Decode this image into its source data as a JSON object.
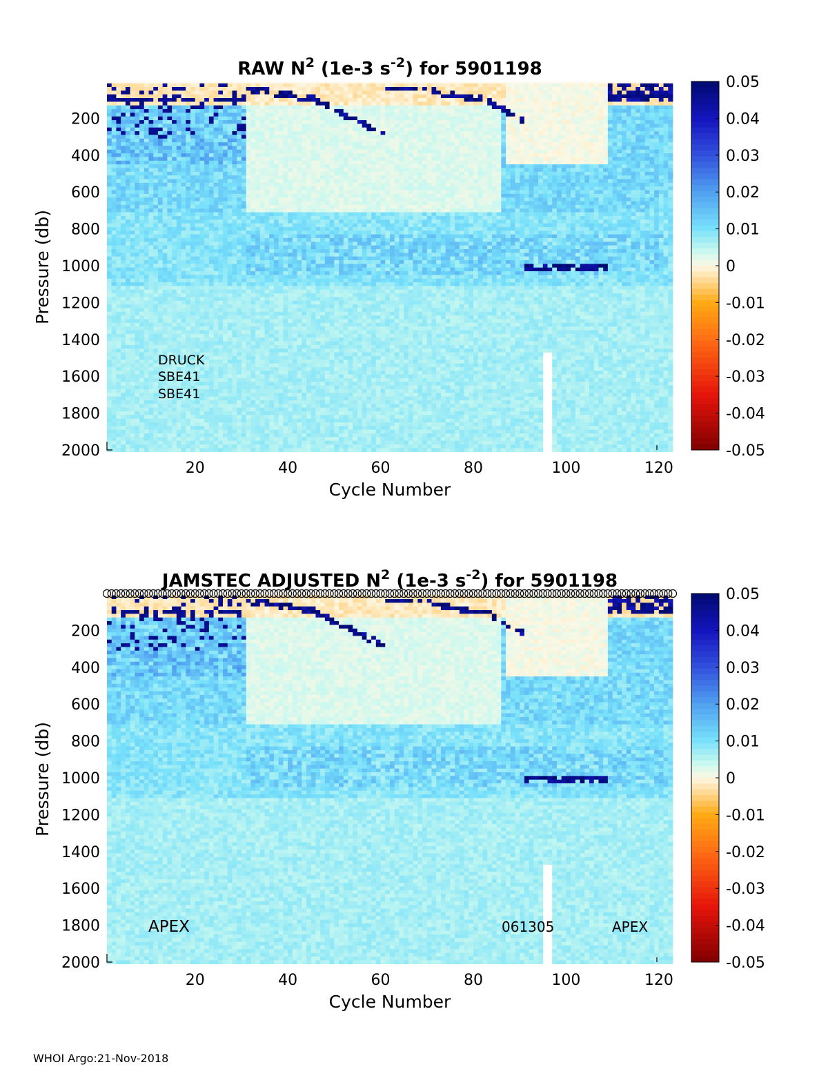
{
  "chart_data": [
    {
      "type": "heatmap",
      "title": {
        "prefix": "RAW N",
        "sup1": "2",
        "mid": " (1e-3 s",
        "sup2": "-2",
        "suffix": ") for 5901198"
      },
      "xlabel": "Cycle Number",
      "ylabel": "Pressure (db)",
      "xlim": [
        1,
        123
      ],
      "ylim": [
        2000,
        0
      ],
      "xticks": [
        20,
        40,
        60,
        80,
        100,
        120
      ],
      "yticks": [
        200,
        400,
        600,
        800,
        1000,
        1200,
        1400,
        1600,
        1800,
        2000
      ],
      "colorbar": {
        "ticks": [
          "0.05",
          "0.04",
          "0.03",
          "0.02",
          "0.01",
          "0",
          "-0.01",
          "-0.02",
          "-0.03",
          "-0.04",
          "-0.05"
        ],
        "range": [
          -0.05,
          0.05
        ],
        "colormap": "jet-diverging"
      },
      "annotations": [
        "DRUCK",
        "SBE41",
        "SBE41"
      ],
      "profile_markers": false,
      "field": {
        "description_values": "N2 approx 0.006-0.012 below 700 db, ~0.002 in mid-depth cycles 31-86 above 700 db, near 0 to slightly negative surface layer, strong positive thin layer (~0.04-0.05) near 100-160 db",
        "surface_layer_max": 0.05,
        "deep_value": 0.008,
        "missing_cycles": [
          95,
          96
        ]
      }
    },
    {
      "type": "heatmap",
      "title": {
        "prefix": "JAMSTEC  ADJUSTED N",
        "sup1": "2",
        "mid": " (1e-3 s",
        "sup2": "-2",
        "suffix": ") for 5901198"
      },
      "xlabel": "Cycle Number",
      "ylabel": "Pressure (db)",
      "xlim": [
        1,
        123
      ],
      "ylim": [
        2000,
        0
      ],
      "xticks": [
        20,
        40,
        60,
        80,
        100,
        120
      ],
      "yticks": [
        200,
        400,
        600,
        800,
        1000,
        1200,
        1400,
        1600,
        1800,
        2000
      ],
      "colorbar": {
        "ticks": [
          "0.05",
          "0.04",
          "0.03",
          "0.02",
          "0.01",
          "0",
          "-0.01",
          "-0.02",
          "-0.03",
          "-0.04",
          "-0.05"
        ],
        "range": [
          -0.05,
          0.05
        ],
        "colormap": "jet-diverging"
      },
      "annotations": [
        "APEX",
        "061305",
        "APEX"
      ],
      "profile_markers": true,
      "field": {
        "surface_layer_max": 0.05,
        "deep_value": 0.008,
        "missing_cycles": [
          95,
          96
        ]
      }
    }
  ],
  "footer": "WHOI Argo:21-Nov-2018"
}
